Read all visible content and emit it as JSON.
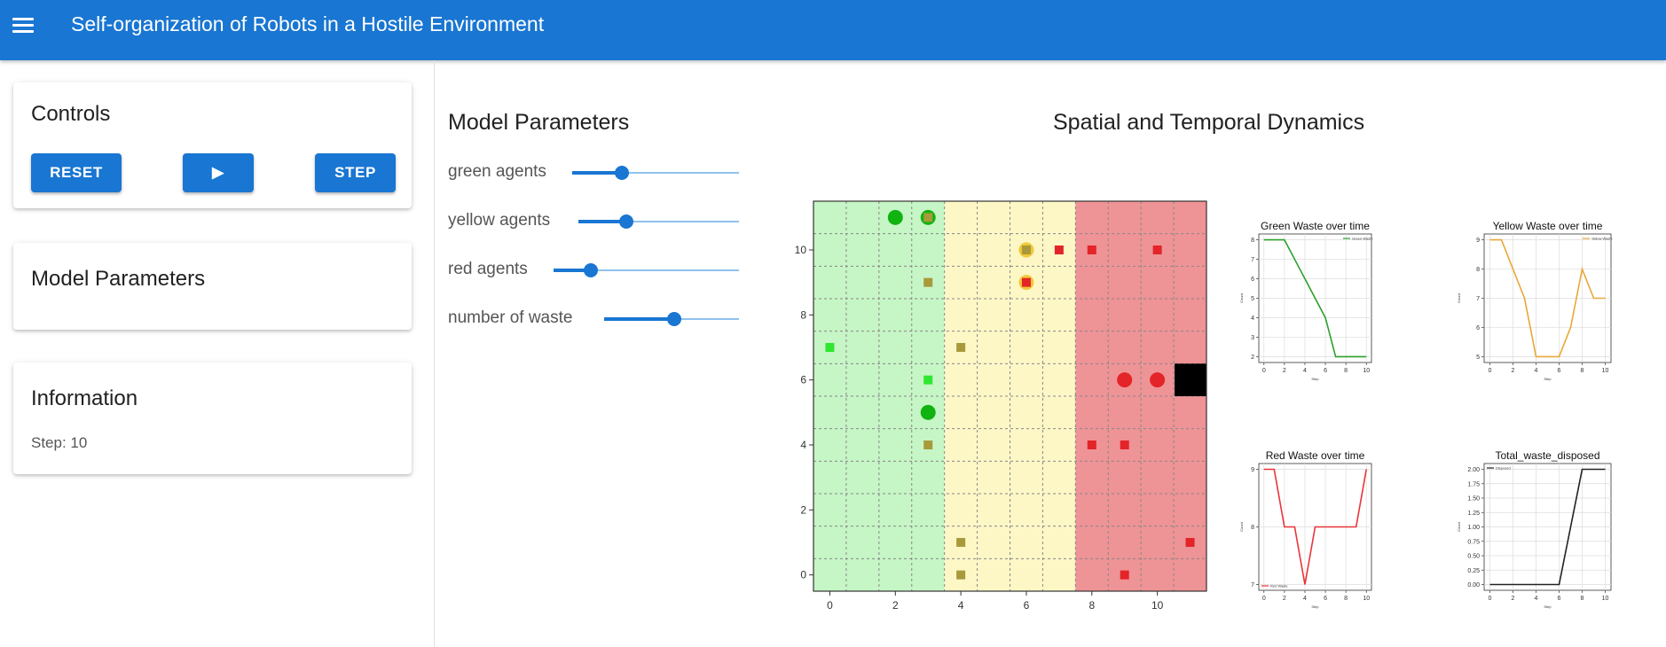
{
  "app": {
    "title": "Self-organization of Robots in a Hostile Environment"
  },
  "controls": {
    "title": "Controls",
    "reset_label": "RESET",
    "play_label": "▶",
    "step_label": "STEP"
  },
  "sidebar_params": {
    "title": "Model Parameters"
  },
  "info": {
    "title": "Information",
    "step_text": "Step: 10"
  },
  "parameters": {
    "title": "Model Parameters",
    "sliders": [
      {
        "label": "green agents",
        "fraction": 0.3
      },
      {
        "label": "yellow agents",
        "fraction": 0.3
      },
      {
        "label": "red agents",
        "fraction": 0.2
      },
      {
        "label": "number of waste",
        "fraction": 0.52
      }
    ]
  },
  "spatial": {
    "title": "Spatial and Temporal Dynamics"
  },
  "grid": {
    "xlim": [
      -0.5,
      11.5
    ],
    "ylim": [
      -0.5,
      11.5
    ],
    "x_ticks": [
      0,
      2,
      4,
      6,
      8,
      10
    ],
    "y_ticks": [
      0,
      2,
      4,
      6,
      8,
      10
    ],
    "zones": [
      {
        "name": "green",
        "from": -0.5,
        "to": 3.5,
        "color": "#c6f5c6"
      },
      {
        "name": "yellow",
        "from": 3.5,
        "to": 7.5,
        "color": "#fdf7c6"
      },
      {
        "name": "red",
        "from": 7.5,
        "to": 11.5,
        "color": "#ee9396"
      }
    ],
    "disposal_zone": {
      "x": 11,
      "y": 6,
      "color": "#000000"
    },
    "agents": [
      {
        "x": 2,
        "y": 11,
        "color": "#10b310"
      },
      {
        "x": 3,
        "y": 11,
        "color": "#10b310"
      },
      {
        "x": 3,
        "y": 5,
        "color": "#10b310"
      },
      {
        "x": 6,
        "y": 10,
        "color": "#f2c83a"
      },
      {
        "x": 6,
        "y": 9,
        "color": "#f2c83a"
      },
      {
        "x": 9,
        "y": 6,
        "color": "#e32428"
      },
      {
        "x": 10,
        "y": 6,
        "color": "#e32428"
      }
    ],
    "wastes": [
      {
        "x": 3,
        "y": 11,
        "color": "#a89a3a"
      },
      {
        "x": 0,
        "y": 7,
        "color": "#31e631"
      },
      {
        "x": 3,
        "y": 6,
        "color": "#31e631"
      },
      {
        "x": 3,
        "y": 9,
        "color": "#a89a3a"
      },
      {
        "x": 4,
        "y": 7,
        "color": "#a89a3a"
      },
      {
        "x": 3,
        "y": 4,
        "color": "#a89a3a"
      },
      {
        "x": 4,
        "y": 1,
        "color": "#a89a3a"
      },
      {
        "x": 4,
        "y": 0,
        "color": "#a89a3a"
      },
      {
        "x": 6,
        "y": 10,
        "color": "#a89a3a"
      },
      {
        "x": 6,
        "y": 9,
        "color": "#e32428"
      },
      {
        "x": 7,
        "y": 10,
        "color": "#e32428"
      },
      {
        "x": 8,
        "y": 10,
        "color": "#e32428"
      },
      {
        "x": 10,
        "y": 10,
        "color": "#e32428"
      },
      {
        "x": 8,
        "y": 4,
        "color": "#e32428"
      },
      {
        "x": 9,
        "y": 4,
        "color": "#e32428"
      },
      {
        "x": 11,
        "y": 1,
        "color": "#e32428"
      },
      {
        "x": 9,
        "y": 0,
        "color": "#e32428"
      }
    ]
  },
  "chart_data": [
    {
      "type": "line",
      "title": "Green Waste over time",
      "xlabel": "Step",
      "ylabel": "Count",
      "x": [
        0,
        1,
        2,
        3,
        4,
        5,
        6,
        7,
        8,
        9,
        10
      ],
      "series": [
        {
          "name": "Green Waste",
          "values": [
            8,
            8,
            8,
            7,
            6,
            5,
            4,
            2,
            2,
            2,
            2
          ]
        }
      ],
      "color": "#2ca02c",
      "legend": "top-right",
      "xlim": [
        -0.5,
        10.5
      ],
      "ylim": [
        1.7,
        8.3
      ],
      "x_ticks": [
        0,
        2,
        4,
        6,
        8,
        10
      ],
      "y_ticks": [
        2,
        3,
        4,
        5,
        6,
        7,
        8
      ]
    },
    {
      "type": "line",
      "title": "Yellow Waste over time",
      "xlabel": "Step",
      "ylabel": "Count",
      "x": [
        0,
        1,
        2,
        3,
        4,
        5,
        6,
        7,
        8,
        9,
        10
      ],
      "series": [
        {
          "name": "Yellow Waste",
          "values": [
            9,
            9,
            8,
            7,
            5,
            5,
            5,
            6,
            8,
            7,
            7
          ]
        }
      ],
      "color": "#e8a838",
      "legend": "top-right",
      "xlim": [
        -0.5,
        10.5
      ],
      "ylim": [
        4.8,
        9.2
      ],
      "x_ticks": [
        0,
        2,
        4,
        6,
        8,
        10
      ],
      "y_ticks": [
        5,
        6,
        7,
        8,
        9
      ]
    },
    {
      "type": "line",
      "title": "Red Waste over time",
      "xlabel": "Step",
      "ylabel": "Count",
      "x": [
        0,
        1,
        2,
        3,
        4,
        5,
        6,
        7,
        8,
        9,
        10
      ],
      "series": [
        {
          "name": "Red Waste",
          "values": [
            9,
            9,
            8,
            8,
            7,
            8,
            8,
            8,
            8,
            8,
            9
          ]
        }
      ],
      "color": "#e8343a",
      "legend": "bottom-left",
      "xlim": [
        -0.5,
        10.5
      ],
      "ylim": [
        6.9,
        9.1
      ],
      "x_ticks": [
        0,
        2,
        4,
        6,
        8,
        10
      ],
      "y_ticks": [
        7,
        8,
        9
      ]
    },
    {
      "type": "line",
      "title": "Total_waste_disposed",
      "xlabel": "Step",
      "ylabel": "Count",
      "x": [
        0,
        1,
        2,
        3,
        4,
        5,
        6,
        7,
        8,
        9,
        10
      ],
      "series": [
        {
          "name": "Disposed",
          "values": [
            0,
            0,
            0,
            0,
            0,
            0,
            0,
            1,
            2,
            2,
            2
          ]
        }
      ],
      "color": "#222222",
      "legend": "top-left",
      "xlim": [
        -0.5,
        10.5
      ],
      "ylim": [
        -0.1,
        2.1
      ],
      "x_ticks": [
        0,
        2,
        4,
        6,
        8,
        10
      ],
      "y_ticks": [
        0,
        0.25,
        0.5,
        0.75,
        1.0,
        1.25,
        1.5,
        1.75,
        2.0
      ],
      "y_tick_labels": [
        "0.00",
        "0.25",
        "0.50",
        "0.75",
        "1.00",
        "1.25",
        "1.50",
        "1.75",
        "2.00"
      ]
    }
  ]
}
